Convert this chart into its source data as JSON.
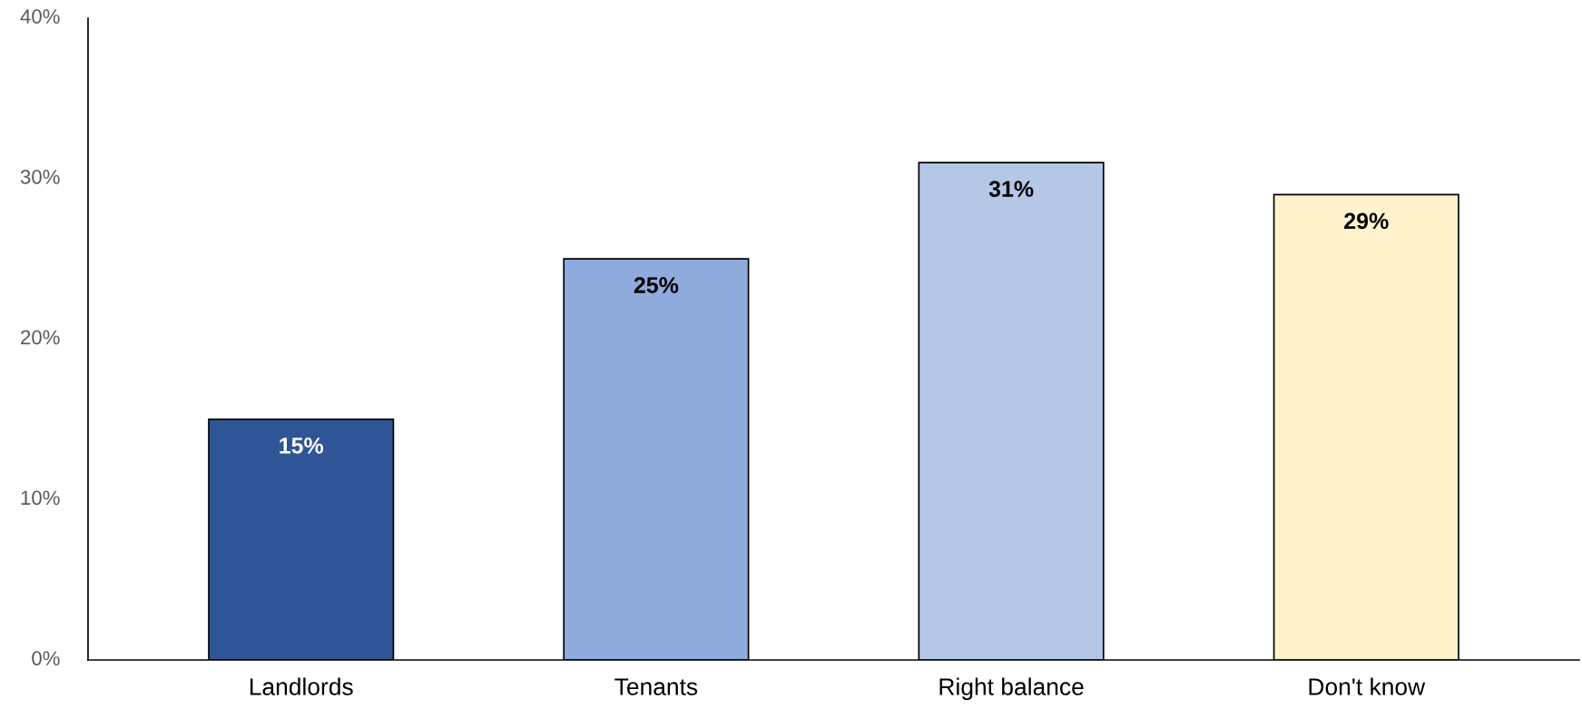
{
  "chart_data": {
    "type": "bar",
    "categories": [
      "Landlords",
      "Tenants",
      "Right balance",
      "Don't know"
    ],
    "values": [
      15,
      25,
      31,
      29
    ],
    "colors": [
      "#2f5597",
      "#8faadc",
      "#b4c7e7",
      "#fff2cc"
    ],
    "ylim": [
      0,
      40
    ],
    "yticks": [
      {
        "value": 0,
        "label": "0%"
      },
      {
        "value": 10,
        "label": "10%"
      },
      {
        "value": 20,
        "label": "20%"
      },
      {
        "value": 30,
        "label": "30%"
      },
      {
        "value": 40,
        "label": "40%"
      }
    ],
    "value_labels": [
      "15%",
      "25%",
      "31%",
      "29%"
    ],
    "grid": false,
    "legend": false
  }
}
